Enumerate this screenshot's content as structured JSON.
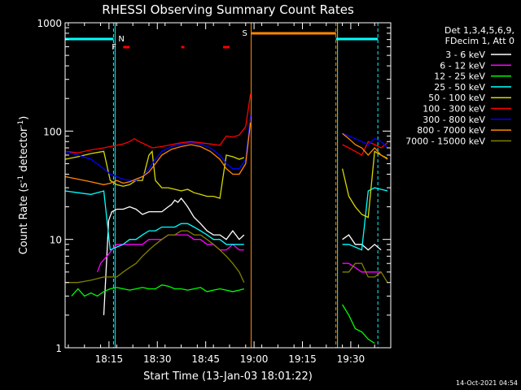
{
  "chart_data": {
    "type": "line",
    "title": "RHESSI Observing Summary Count Rates",
    "xlabel": "Start Time (13-Jan-03 18:01:22)",
    "ylabel_main": "Count Rate (s",
    "ylabel_sup1": "-1",
    "ylabel_mid": " detector",
    "ylabel_sup2": "-1",
    "ylabel_end": ")",
    "y_scale": "log",
    "ylim": [
      1,
      1000
    ],
    "xlim_minutes": [
      0,
      101
    ],
    "x_ticks": [
      {
        "label": "18:15",
        "t": 13.6
      },
      {
        "label": "18:30",
        "t": 28.6
      },
      {
        "label": "18:45",
        "t": 43.6
      },
      {
        "label": "19:00",
        "t": 58.6
      },
      {
        "label": "19:15",
        "t": 73.6
      },
      {
        "label": "19:30",
        "t": 88.6
      }
    ],
    "y_ticks": [
      {
        "label": "1",
        "v": 1
      },
      {
        "label": "10",
        "v": 10
      },
      {
        "label": "100",
        "v": 100
      },
      {
        "label": "1000",
        "v": 1000
      }
    ],
    "legend": {
      "header1": "Det 1,3,4,5,6,9,",
      "header2": "FDecim 1, Att 0",
      "placement": "outside-right"
    },
    "series": [
      {
        "name": "3 - 6 keV",
        "color": "#ffffff",
        "segments": [
          {
            "t": [
              12,
              13.5,
              14.5,
              16,
              18,
              20,
              22,
              24,
              26,
              28,
              30,
              32,
              33,
              34,
              35,
              36,
              37,
              38,
              40,
              42,
              44,
              46,
              48,
              50,
              52,
              54,
              55.5
            ],
            "v": [
              2,
              15,
              18,
              19,
              19,
              20,
              19,
              17,
              18,
              18,
              18,
              20,
              21,
              23,
              22,
              24,
              22,
              20,
              16,
              14,
              12,
              11,
              11,
              10,
              12,
              10,
              11
            ]
          },
          {
            "t": [
              86,
              88,
              90,
              92,
              94,
              96,
              98
            ],
            "v": [
              10,
              11,
              9,
              9,
              8,
              9,
              8
            ]
          }
        ]
      },
      {
        "name": "6 - 12 keV",
        "color": "#ff00ff",
        "segments": [
          {
            "t": [
              10,
              11,
              12,
              13,
              14.5,
              16,
              18,
              20,
              22,
              24,
              26,
              28,
              30,
              32,
              34,
              36,
              38,
              40,
              42,
              44,
              46,
              48,
              50,
              52,
              54,
              55.5
            ],
            "v": [
              5,
              6,
              6.5,
              7,
              8,
              9,
              9,
              9,
              9,
              9,
              10,
              10,
              10,
              11,
              11,
              11,
              11,
              10,
              10,
              9,
              9,
              8,
              8,
              9,
              8,
              8
            ]
          },
          {
            "t": [
              86,
              88,
              90,
              92,
              94,
              96,
              98
            ],
            "v": [
              6,
              6,
              5.5,
              5,
              5,
              5,
              5
            ]
          }
        ]
      },
      {
        "name": "12 - 25 keV",
        "color": "#00ff00",
        "segments": [
          {
            "t": [
              2,
              4,
              6,
              8,
              10,
              12,
              14,
              16,
              18,
              20,
              22,
              24,
              26,
              28,
              30,
              32,
              34,
              36,
              38,
              40,
              42,
              44,
              46,
              48,
              50,
              52,
              54,
              55.5
            ],
            "v": [
              3,
              3.5,
              3,
              3.2,
              3,
              3.3,
              3.5,
              3.6,
              3.5,
              3.4,
              3.5,
              3.6,
              3.5,
              3.5,
              3.8,
              3.7,
              3.5,
              3.5,
              3.4,
              3.5,
              3.6,
              3.3,
              3.4,
              3.5,
              3.4,
              3.3,
              3.4,
              3.5
            ]
          },
          {
            "t": [
              86,
              88,
              90,
              92,
              94,
              96
            ],
            "v": [
              2.5,
              2,
              1.5,
              1.4,
              1.2,
              1.1
            ]
          }
        ]
      },
      {
        "name": "25 - 50 keV",
        "color": "#00ffff",
        "segments": [
          {
            "t": [
              0,
              4,
              8,
              12,
              14,
              16,
              18,
              20,
              22,
              24,
              26,
              28,
              30,
              32,
              34,
              36,
              38,
              40,
              42,
              44,
              46,
              48,
              50,
              52,
              54,
              55.5
            ],
            "v": [
              28,
              27,
              26,
              28,
              8,
              8.5,
              9,
              10,
              10,
              11,
              12,
              12,
              13,
              13,
              13,
              14,
              14,
              13,
              12,
              11,
              10,
              10,
              9,
              9,
              9,
              9
            ]
          },
          {
            "t": [
              86,
              88,
              90,
              92,
              94,
              96,
              98,
              100
            ],
            "v": [
              9,
              9,
              8.5,
              8,
              28,
              30,
              29,
              28
            ]
          }
        ]
      },
      {
        "name": "50 - 100 keV",
        "color": "#d8d800",
        "segments": [
          {
            "t": [
              0,
              4,
              8,
              12,
              14,
              16,
              18,
              20,
              22,
              24,
              26,
              27,
              28,
              30,
              32,
              34,
              36,
              38,
              40,
              42,
              44,
              46,
              48,
              50,
              52,
              54,
              55.5
            ],
            "v": [
              55,
              58,
              62,
              65,
              35,
              32,
              31,
              32,
              35,
              35,
              60,
              65,
              35,
              30,
              30,
              29,
              28,
              29,
              27,
              26,
              25,
              25,
              24,
              60,
              58,
              55,
              57
            ]
          },
          {
            "t": [
              86,
              88,
              90,
              92,
              94,
              96,
              98,
              100
            ],
            "v": [
              45,
              25,
              20,
              17,
              16,
              65,
              60,
              56
            ]
          }
        ]
      },
      {
        "name": "100 - 300 keV",
        "color": "#ff0000",
        "segments": [
          {
            "t": [
              0,
              4,
              8,
              12,
              14,
              16,
              18,
              20,
              21.5,
              23,
              25,
              27,
              30,
              33,
              36,
              39,
              42,
              45,
              48,
              50,
              52,
              54,
              56,
              57.5
            ],
            "v": [
              65,
              63,
              67,
              70,
              72,
              74,
              76,
              80,
              85,
              80,
              75,
              70,
              72,
              75,
              78,
              80,
              78,
              76,
              74,
              90,
              88,
              92,
              110,
              220
            ]
          },
          {
            "t": [
              86,
              88,
              90,
              92,
              94,
              96,
              98,
              100
            ],
            "v": [
              75,
              70,
              65,
              60,
              80,
              75,
              70,
              78
            ]
          }
        ]
      },
      {
        "name": "300 - 800 keV",
        "color": "#0000ff",
        "segments": [
          {
            "t": [
              0,
              4,
              8,
              12,
              14,
              16,
              18,
              20,
              22,
              24,
              26,
              28,
              30,
              33,
              36,
              39,
              42,
              45,
              48,
              50,
              52,
              54,
              56,
              57.5
            ],
            "v": [
              65,
              60,
              55,
              45,
              40,
              38,
              36,
              35,
              35,
              38,
              45,
              55,
              65,
              72,
              76,
              78,
              76,
              70,
              60,
              50,
              45,
              45,
              55,
              140
            ]
          },
          {
            "t": [
              86,
              88,
              90,
              92,
              94,
              96,
              98,
              100
            ],
            "v": [
              95,
              90,
              85,
              80,
              75,
              85,
              80,
              70
            ]
          }
        ]
      },
      {
        "name": "800 - 7000 keV",
        "color": "#ff8800",
        "segments": [
          {
            "t": [
              0,
              4,
              8,
              12,
              14,
              16,
              18,
              20,
              22,
              24,
              26,
              28,
              30,
              33,
              36,
              39,
              42,
              45,
              48,
              50,
              52,
              54,
              56,
              57.5
            ],
            "v": [
              38,
              36,
              34,
              32,
              33,
              35,
              33,
              34,
              36,
              38,
              42,
              50,
              60,
              68,
              72,
              75,
              72,
              65,
              55,
              45,
              40,
              40,
              50,
              120
            ]
          },
          {
            "t": [
              86,
              88,
              90,
              92,
              94,
              96,
              98,
              100
            ],
            "v": [
              95,
              85,
              75,
              70,
              60,
              70,
              60,
              55
            ]
          }
        ]
      },
      {
        "name": "7000 - 15000 keV",
        "color": "#808000",
        "segments": [
          {
            "t": [
              0,
              4,
              8,
              12,
              14,
              16,
              18,
              20,
              22,
              24,
              26,
              28,
              30,
              32,
              34,
              36,
              38,
              40,
              42,
              44,
              46,
              48,
              50,
              52,
              54,
              55.5
            ],
            "v": [
              4,
              4,
              4.2,
              4.5,
              4.5,
              4.5,
              5,
              5.5,
              6,
              7,
              8,
              9,
              10,
              11,
              11,
              12,
              12,
              11,
              11,
              10,
              9,
              8,
              7,
              6,
              5,
              4
            ]
          },
          {
            "t": [
              86,
              88,
              90,
              92,
              94,
              96,
              98,
              100
            ],
            "v": [
              5,
              5,
              6,
              6,
              4.5,
              4.5,
              5,
              4
            ]
          }
        ]
      }
    ],
    "annotations": {
      "night_label": "N",
      "saa_label": "S",
      "flare_label": "F",
      "night_bars": [
        [
          0,
          15
        ],
        [
          84,
          97
        ]
      ],
      "night_marker_times": [
        15,
        97
      ],
      "saa_bar": [
        57.7,
        84
      ],
      "saa_marker_times": [
        57.7,
        84
      ],
      "flare_bars": [
        [
          18,
          20
        ],
        [
          36,
          37
        ],
        [
          49,
          51
        ]
      ],
      "gap_boundaries": [
        0,
        15.5,
        84.5
      ]
    },
    "timestamp": "14-Oct-2021 04:54"
  }
}
